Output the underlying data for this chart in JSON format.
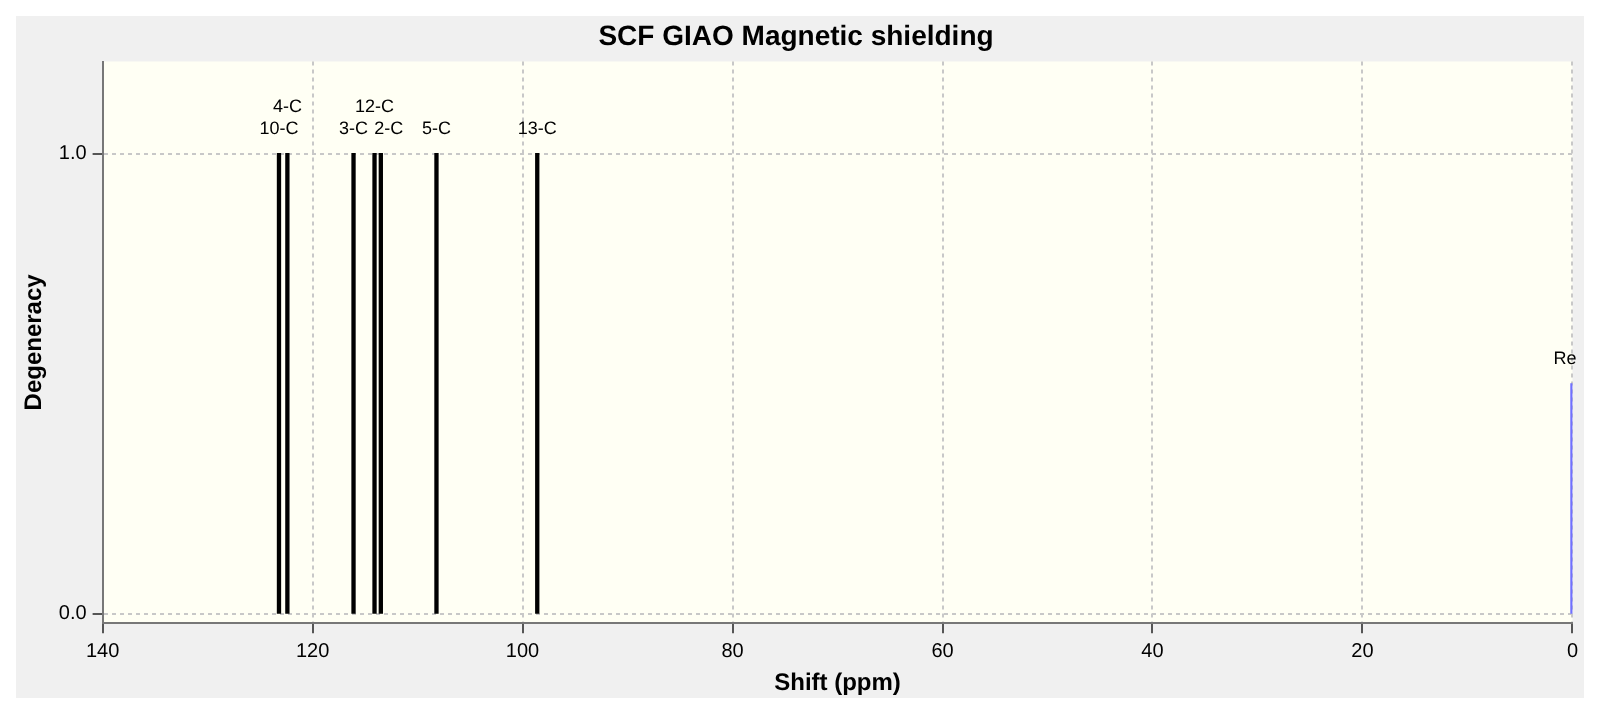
{
  "chart_data": {
    "type": "bar",
    "title": "SCF GIAO Magnetic shielding",
    "xlabel": "Shift (ppm)",
    "ylabel": "Degeneracy",
    "x": [
      123.2,
      122.4,
      116.1,
      114.1,
      113.5,
      108.2,
      98.6,
      0
    ],
    "values": [
      1,
      1,
      1,
      1,
      1,
      1,
      1,
      0.5
    ],
    "colors": [
      "#000000",
      "#000000",
      "#000000",
      "#000000",
      "#000000",
      "#000000",
      "#000000",
      "#7070ff"
    ],
    "xlim": [
      140,
      0
    ],
    "xticks": [
      140,
      120,
      100,
      80,
      60,
      40,
      20,
      0
    ],
    "ylim": [
      -0.02,
      1.2
    ],
    "yticks": [
      {
        "value": 0,
        "label": "0.0"
      },
      {
        "value": 1,
        "label": "1.0"
      }
    ],
    "grid": true,
    "legend": false,
    "annotations": [
      {
        "text": "10-C",
        "x": 123.2,
        "y": 1
      },
      {
        "text": "4-C",
        "x": 122.4,
        "y": 1
      },
      {
        "text": "3-C",
        "x": 116.1,
        "y": 1
      },
      {
        "text": "12-C",
        "x": 114.1,
        "y": 1
      },
      {
        "text": "2-C",
        "x": 113.5,
        "y": 1
      },
      {
        "text": "5-C",
        "x": 108.2,
        "y": 1
      },
      {
        "text": "13-C",
        "x": 98.6,
        "y": 1
      },
      {
        "text": "Re",
        "x": 0,
        "y": 0.5
      }
    ]
  }
}
